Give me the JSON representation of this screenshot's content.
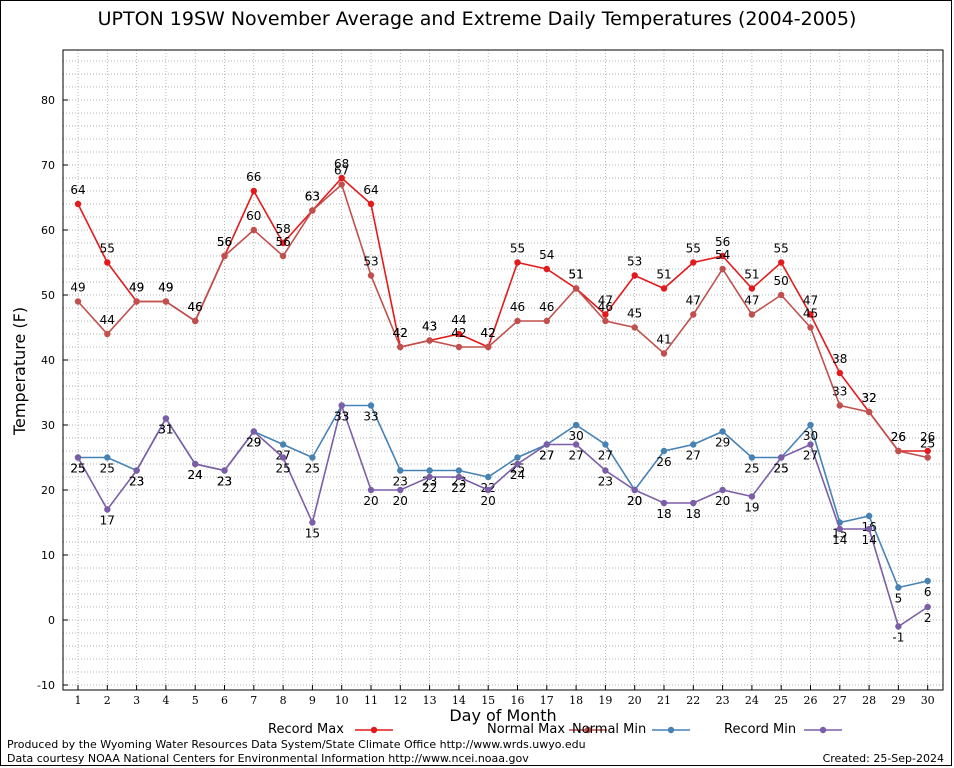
{
  "chart_data": {
    "type": "line",
    "title": "UPTON 19SW November Average and Extreme Daily Temperatures (2004-2005)",
    "xlabel": "Day of Month",
    "ylabel": "Temperature (F)",
    "xlim": [
      1,
      30
    ],
    "ylim": [
      -10,
      90
    ],
    "yticks": [
      -10,
      0,
      10,
      20,
      30,
      40,
      50,
      60,
      70,
      80
    ],
    "grid": true,
    "legend_position": "bottom",
    "categories": [
      "1",
      "2",
      "3",
      "4",
      "5",
      "6",
      "7",
      "8",
      "9",
      "10",
      "11",
      "12",
      "13",
      "14",
      "15",
      "16",
      "17",
      "18",
      "19",
      "20",
      "21",
      "22",
      "23",
      "24",
      "25",
      "26",
      "27",
      "28",
      "29",
      "30"
    ],
    "series": [
      {
        "name": "Record Max",
        "color": "#e31a1c",
        "values": [
          64,
          55,
          49,
          49,
          46,
          56,
          66,
          58,
          63,
          68,
          64,
          42,
          43,
          44,
          42,
          55,
          54,
          51,
          47,
          53,
          51,
          55,
          56,
          51,
          55,
          47,
          38,
          32,
          26,
          26
        ]
      },
      {
        "name": "Normal Max",
        "color": "#c0504d",
        "values": [
          49,
          44,
          49,
          49,
          46,
          56,
          60,
          56,
          63,
          67,
          53,
          42,
          43,
          42,
          42,
          46,
          46,
          51,
          46,
          45,
          41,
          47,
          54,
          47,
          50,
          45,
          33,
          32,
          26,
          25
        ]
      },
      {
        "name": "Normal Min",
        "color": "#4682b4",
        "values": [
          25,
          25,
          23,
          31,
          24,
          23,
          29,
          27,
          25,
          33,
          33,
          23,
          23,
          23,
          22,
          25,
          27,
          30,
          27,
          20,
          26,
          27,
          29,
          25,
          25,
          30,
          15,
          16,
          5,
          6
        ]
      },
      {
        "name": "Record Min",
        "color": "#7b5ea7",
        "values": [
          25,
          17,
          23,
          31,
          24,
          23,
          29,
          25,
          15,
          33,
          20,
          20,
          22,
          22,
          20,
          24,
          27,
          27,
          23,
          20,
          18,
          18,
          20,
          19,
          25,
          27,
          14,
          14,
          -1,
          2
        ]
      }
    ]
  },
  "legend": [
    {
      "label": "Record Max",
      "color": "#e31a1c"
    },
    {
      "label": "Normal Max",
      "color": "#c0504d"
    },
    {
      "label": "Normal Min",
      "color": "#4682b4"
    },
    {
      "label": "Record Min",
      "color": "#7b5ea7"
    }
  ],
  "footer": {
    "produced": "Produced by the Wyoming Water Resources Data System/State Climate Office http://www.wrds.uwyo.edu",
    "courtesy": "Data courtesy NOAA National Centers for Environmental Information http://www.ncei.noaa.gov",
    "created": "Created:  25-Sep-2024"
  }
}
